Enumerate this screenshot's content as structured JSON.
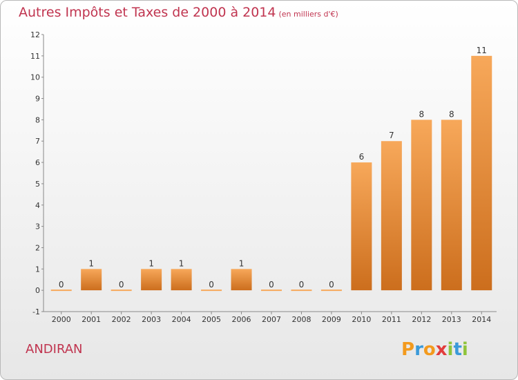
{
  "title": "Autres Impôts et Taxes de 2000 à 2014",
  "subtitle": "(en milliers d'€)",
  "commune": "ANDIRAN",
  "brand": {
    "letters": [
      "P",
      "r",
      "o",
      "x",
      "i",
      "t",
      "i"
    ],
    "colors": [
      "#f39a1d",
      "#3b9ad9",
      "#f39a1d",
      "#e23c3c",
      "#8fc43b",
      "#3b9ad9",
      "#8fc43b"
    ]
  },
  "colors": {
    "bar_top": "#f7a85a",
    "bar_bottom": "#cc6e1d",
    "title": "#c0344f"
  },
  "chart_data": {
    "type": "bar",
    "categories": [
      "2000",
      "2001",
      "2002",
      "2003",
      "2004",
      "2005",
      "2006",
      "2007",
      "2008",
      "2009",
      "2010",
      "2011",
      "2012",
      "2013",
      "2014"
    ],
    "values": [
      0,
      1,
      0,
      1,
      1,
      0,
      1,
      0,
      0,
      0,
      6,
      7,
      8,
      8,
      11
    ],
    "ylim": [
      -1,
      12
    ],
    "yticks": [
      -1,
      0,
      1,
      2,
      3,
      4,
      5,
      6,
      7,
      8,
      9,
      10,
      11,
      12
    ],
    "grid": false
  }
}
